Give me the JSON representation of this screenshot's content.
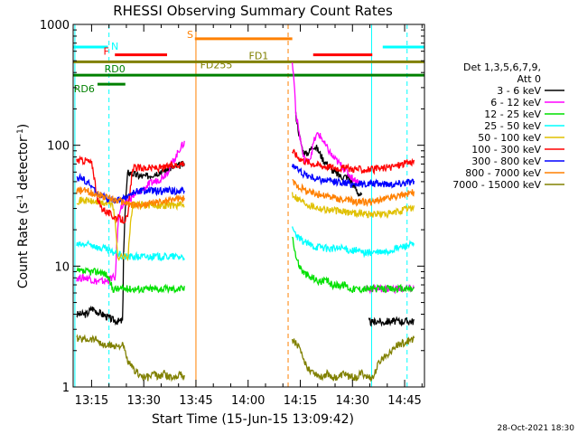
{
  "chart_data": {
    "type": "line",
    "title": "RHESSI Observing Summary Count Rates",
    "xlabel": "Start Time (15-Jun-15 13:09:42)",
    "ylabel_main": "Count Rate (s",
    "ylabel_sup1": "-1",
    "ylabel_mid": " detector",
    "ylabel_sup2": "-1",
    "ylabel_end": ")",
    "y_scale": "log",
    "ylim": [
      1,
      1000
    ],
    "xlim_minutes": [
      0,
      101
    ],
    "x_ticks": [
      {
        "minute": 5.3,
        "label": "13:15"
      },
      {
        "minute": 20.3,
        "label": "13:30"
      },
      {
        "minute": 35.3,
        "label": "13:45"
      },
      {
        "minute": 50.3,
        "label": "14:00"
      },
      {
        "minute": 65.3,
        "label": "14:15"
      },
      {
        "minute": 80.3,
        "label": "14:30"
      },
      {
        "minute": 95.3,
        "label": "14:45"
      }
    ],
    "y_ticks": [
      {
        "value": 1,
        "label": "1"
      },
      {
        "value": 10,
        "label": "10"
      },
      {
        "value": 100,
        "label": "100"
      },
      {
        "value": 1000,
        "label": "1000"
      }
    ],
    "legend_header": [
      "Det 1,3,5,6,7,9,",
      "Att 0"
    ],
    "series": [
      {
        "name": "3 - 6 keV",
        "color": "#000000",
        "segments": [
          {
            "start": 1,
            "end": 32,
            "values": [
              4,
              4,
              4,
              4.5,
              4.2,
              4,
              3.8,
              3.6,
              3.5,
              3.5,
              60,
              58,
              56,
              55,
              56,
              58,
              60,
              62,
              64,
              66,
              68,
              70
            ]
          },
          {
            "start": 64,
            "end": 83,
            "values": [
              180,
              120,
              90,
              85,
              90,
              100,
              95,
              85,
              75,
              70,
              65,
              60,
              58,
              55,
              55,
              55,
              50,
              45,
              40,
              38
            ]
          },
          {
            "start": 85,
            "end": 98,
            "values": [
              3.5,
              3.4,
              3.5,
              3.5,
              3.4,
              3.5,
              3.5,
              3.5,
              3.5,
              3.5,
              3.5,
              3.5,
              3.5,
              3.5
            ]
          }
        ]
      },
      {
        "name": "6 - 12 keV",
        "color": "#ff00ff",
        "segments": [
          {
            "start": 1,
            "end": 32,
            "values": [
              8,
              8,
              8,
              8,
              7.5,
              7.5,
              7.5,
              7.5,
              8,
              8,
              30,
              32,
              35,
              38,
              40,
              42,
              45,
              48,
              50,
              52,
              55,
              60,
              70,
              80,
              95,
              105
            ]
          },
          {
            "start": 63,
            "end": 83,
            "values": [
              480,
              180,
              120,
              80,
              72,
              80,
              110,
              125,
              115,
              100,
              90,
              80,
              75,
              70,
              65,
              60,
              55,
              52,
              50,
              48
            ]
          },
          {
            "start": 84,
            "end": 98,
            "values": [
              6.5,
              6.5,
              6.5,
              6.5,
              6.5,
              6.5,
              6.5,
              6.5,
              6.5,
              6.5,
              6.5,
              6.5,
              6.5,
              6.5
            ]
          }
        ]
      },
      {
        "name": "12 - 25 keV",
        "color": "#00e000",
        "segments": [
          {
            "start": 1,
            "end": 32,
            "values": [
              9,
              9,
              9,
              9,
              9,
              8.5,
              6.5,
              6.5,
              6.5,
              6.5,
              6.5,
              6.5,
              6.5,
              6.5,
              6.5,
              6.5,
              6.5,
              6.5,
              6.5
            ]
          },
          {
            "start": 63,
            "end": 98,
            "values": [
              18,
              12,
              10,
              9,
              8.5,
              8,
              8,
              7.5,
              7.5,
              7.5,
              7.5,
              7,
              7,
              7,
              7,
              7,
              6.5,
              6.5,
              6.5,
              6.5,
              6.5,
              6.5,
              6.5,
              6.5,
              6.5,
              6.5,
              6.5,
              6.5,
              6.5,
              6.5,
              6.5,
              6.5,
              6.5,
              6.5,
              6.5
            ]
          }
        ]
      },
      {
        "name": "25 - 50 keV",
        "color": "#00ffff",
        "segments": [
          {
            "start": 1,
            "end": 32,
            "values": [
              15,
              15,
              15,
              15,
              14,
              14,
              13,
              13,
              12,
              12,
              12,
              12,
              12,
              12,
              12,
              12,
              12,
              12,
              12,
              12
            ]
          },
          {
            "start": 63,
            "end": 98,
            "values": [
              20,
              17,
              16,
              15,
              14.5,
              14.5,
              14,
              14,
              14,
              14,
              13.5,
              13.5,
              13,
              13,
              13,
              13,
              13,
              13.5,
              14,
              14.5,
              15,
              15
            ]
          }
        ]
      },
      {
        "name": "50 - 100 keV",
        "color": "#e0c000",
        "segments": [
          {
            "start": 1,
            "end": 32,
            "values": [
              35,
              35,
              35,
              34,
              34,
              33,
              33,
              33,
              12,
              12,
              12,
              32,
              32,
              32,
              32,
              32,
              32,
              32,
              32,
              32,
              32,
              32
            ]
          },
          {
            "start": 63,
            "end": 98,
            "values": [
              40,
              36,
              34,
              32,
              31,
              30,
              29.5,
              29,
              28.5,
              28,
              28,
              27.5,
              27.5,
              27,
              27,
              27,
              27,
              27,
              28,
              29,
              30,
              31
            ]
          }
        ]
      },
      {
        "name": "100 - 300 keV",
        "color": "#ff0000",
        "segments": [
          {
            "start": 1,
            "end": 32,
            "values": [
              75,
              75,
              75,
              70,
              35,
              30,
              28,
              26,
              25,
              24,
              25,
              65,
              65,
              65,
              65,
              65,
              65,
              65,
              68,
              68,
              70,
              72
            ]
          },
          {
            "start": 63,
            "end": 98,
            "values": [
              90,
              80,
              75,
              72,
              70,
              68,
              67,
              66,
              65,
              65,
              64,
              64,
              63,
              63,
              63,
              64,
              65,
              66,
              68,
              70,
              72,
              74
            ]
          }
        ]
      },
      {
        "name": "300 - 800 keV",
        "color": "#0000ff",
        "segments": [
          {
            "start": 1,
            "end": 32,
            "values": [
              55,
              53,
              50,
              45,
              40,
              38,
              36,
              35,
              35,
              36,
              38,
              40,
              42,
              42,
              42,
              42,
              42,
              42,
              42,
              42,
              42,
              42
            ]
          },
          {
            "start": 63,
            "end": 98,
            "values": [
              70,
              62,
              58,
              55,
              53,
              52,
              51,
              50,
              50,
              49,
              48,
              48,
              48,
              48,
              48,
              48,
              48,
              48,
              48,
              49,
              50,
              50
            ]
          }
        ]
      },
      {
        "name": "800 - 7000 keV",
        "color": "#ff8000",
        "segments": [
          {
            "start": 1,
            "end": 32,
            "values": [
              42,
              42,
              42,
              40,
              40,
              38,
              37,
              36,
              35,
              34,
              33,
              32,
              32,
              32,
              33,
              33,
              34,
              34,
              35,
              36,
              36,
              36
            ]
          },
          {
            "start": 63,
            "end": 98,
            "values": [
              50,
              46,
              43,
              41,
              40,
              39,
              38,
              37,
              36,
              35,
              35,
              34,
              34,
              34,
              34,
              35,
              36,
              37,
              38,
              39,
              40,
              41
            ]
          }
        ]
      },
      {
        "name": "7000 - 15000 keV",
        "color": "#808000",
        "segments": [
          {
            "start": 1,
            "end": 32,
            "values": [
              2.5,
              2.5,
              2.5,
              2.5,
              2.5,
              2.2,
              2.2,
              2.2,
              2.2,
              2.2,
              1.6,
              1.4,
              1.3,
              1.2,
              1.2,
              1.3,
              1.2,
              1.3,
              1.2,
              1.2,
              1.3,
              1.2
            ]
          },
          {
            "start": 63,
            "end": 98,
            "values": [
              2.5,
              2.2,
              1.6,
              1.4,
              1.3,
              1.2,
              1.3,
              1.2,
              1.2,
              1.3,
              1.2,
              1.2,
              1.3,
              1.2,
              1.2,
              1.6,
              1.8,
              2.0,
              2.2,
              2.3,
              2.4,
              2.5
            ]
          }
        ]
      }
    ],
    "flag_bars": [
      {
        "label": "N",
        "color": "#00ffff",
        "y_value": 650,
        "spans": [
          [
            0,
            10
          ],
          [
            89,
            101
          ]
        ]
      },
      {
        "label": "S",
        "color": "#ff8000",
        "y_value": 760,
        "spans": [
          [
            35,
            63
          ]
        ]
      },
      {
        "label": "F",
        "color": "#ff0000",
        "y_value": 560,
        "spans": [
          [
            12,
            27
          ],
          [
            69,
            86
          ]
        ]
      },
      {
        "label": "FD1",
        "color": "#808000",
        "y_value": 490,
        "spans": [
          [
            0,
            101
          ]
        ]
      },
      {
        "label": "FD255",
        "color": "#808000",
        "y_value": 490,
        "spans": []
      },
      {
        "label": "RD0",
        "color": "#008000",
        "y_value": 380,
        "spans": [
          [
            0,
            101
          ]
        ]
      },
      {
        "label": "RD6",
        "color": "#008000",
        "y_value": 320,
        "spans": [
          [
            7,
            15
          ]
        ]
      }
    ],
    "vertical_markers": [
      {
        "minute": 0.5,
        "color": "#00ffff",
        "style": "solid"
      },
      {
        "minute": 10.3,
        "color": "#00ffff",
        "style": "dashed"
      },
      {
        "minute": 35.3,
        "color": "#ff8000",
        "style": "solid"
      },
      {
        "minute": 61.8,
        "color": "#ff8000",
        "style": "dashed"
      },
      {
        "minute": 85.8,
        "color": "#00ffff",
        "style": "solid"
      },
      {
        "minute": 96.0,
        "color": "#00ffff",
        "style": "dashed"
      }
    ]
  },
  "footer_timestamp": "28-Oct-2021 18:30"
}
